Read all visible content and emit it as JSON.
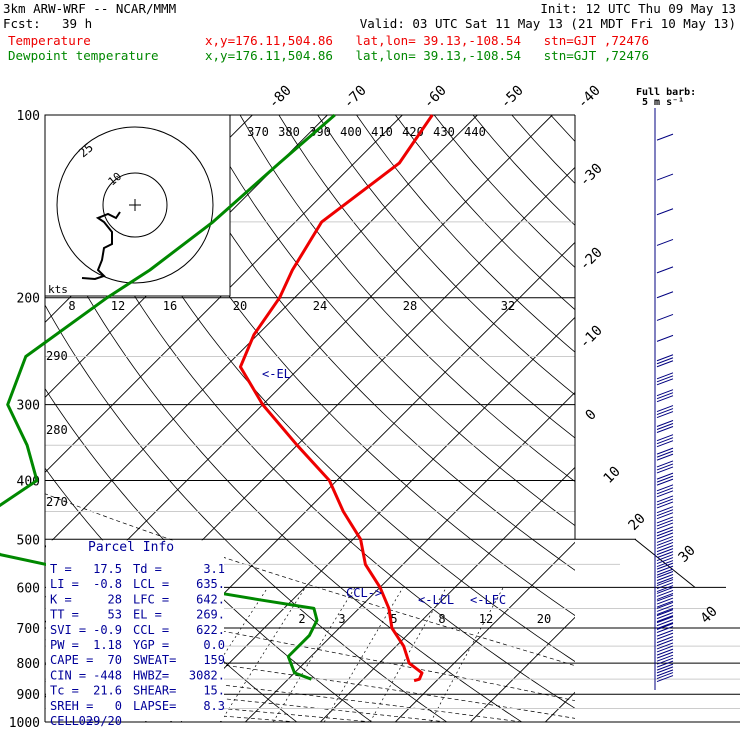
{
  "header": {
    "model": "3km ARW-WRF -- NCAR/MMM",
    "init": "Init: 12 UTC Thu 09 May 13",
    "fcst_label": "Fcst:",
    "fcst_value": "39 h",
    "valid": "Valid: 03 UTC Sat 11 May 13 (21 MDT Fri 10 May 13)",
    "temp_label": "Temperature",
    "temp_loc": "x,y=176.11,504.86   lat,lon= 39.13,-108.54   stn=GJT ,72476",
    "dew_label": "Dewpoint temperature",
    "dew_loc": "x,y=176.11,504.86   lat,lon= 39.13,-108.54   stn=GJT ,72476"
  },
  "colors": {
    "temperature": "#ee0000",
    "dewpoint": "#008800",
    "barbs": "#000080",
    "parcel_text": "#000099"
  },
  "chart_data": {
    "type": "line",
    "title": "Skew-T log-P sounding",
    "y_axis": {
      "label": "",
      "scale": "log-pressure",
      "ticks": [
        "100",
        "200",
        "300",
        "400",
        "500",
        "600",
        "700",
        "800",
        "900",
        "1000"
      ]
    },
    "isotherm_labels": [
      "-80",
      "-70",
      "-60",
      "-50",
      "-40",
      "-30",
      "-20",
      "-10",
      "0",
      "10",
      "20",
      "30",
      "40"
    ],
    "theta_labels": [
      "290",
      "280",
      "270"
    ],
    "theta_e_labels": [
      "370",
      "380",
      "390",
      "400",
      "410",
      "420",
      "430",
      "440"
    ],
    "mixing_ratio_labels": [
      "2",
      "3",
      "5",
      "8",
      "12",
      "20"
    ],
    "mixing_ratio_units": "g/kg",
    "annotations": [
      "<-EL",
      "CCL->",
      "<-LCL",
      "<-LFC"
    ],
    "barb_legend": {
      "title": "Full barb:",
      "value": "5 m s⁻¹"
    },
    "hodograph": {
      "units": "kts",
      "ring_labels": [
        "25",
        "10"
      ],
      "speed_ticks": [
        "8",
        "12",
        "16",
        "20",
        "24",
        "28",
        "32"
      ]
    },
    "series": [
      {
        "name": "Temperature",
        "points": [
          [
            100,
            -56
          ],
          [
            120,
            -54
          ],
          [
            150,
            -56.5
          ],
          [
            180,
            -54
          ],
          [
            200,
            -52
          ],
          [
            230,
            -50.5
          ],
          [
            260,
            -48
          ],
          [
            300,
            -40
          ],
          [
            350,
            -30
          ],
          [
            400,
            -21
          ],
          [
            450,
            -15
          ],
          [
            500,
            -9
          ],
          [
            550,
            -5
          ],
          [
            600,
            0
          ],
          [
            650,
            4
          ],
          [
            700,
            7
          ],
          [
            750,
            11
          ],
          [
            800,
            14
          ],
          [
            830,
            17
          ],
          [
            850,
            17.5
          ],
          [
            855,
            17
          ]
        ]
      },
      {
        "name": "Dewpoint temperature",
        "points": [
          [
            100,
            -69
          ],
          [
            120,
            -70
          ],
          [
            150,
            -71
          ],
          [
            180,
            -73
          ],
          [
            200,
            -75
          ],
          [
            250,
            -78
          ],
          [
            300,
            -74
          ],
          [
            350,
            -66
          ],
          [
            400,
            -60
          ],
          [
            450,
            -62
          ],
          [
            500,
            -60
          ],
          [
            530,
            -55
          ],
          [
            560,
            -44
          ],
          [
            600,
            -26
          ],
          [
            630,
            -14
          ],
          [
            650,
            -6
          ],
          [
            680,
            -4
          ],
          [
            720,
            -3
          ],
          [
            780,
            -3
          ],
          [
            830,
            0
          ],
          [
            850,
            3.1
          ]
        ]
      }
    ],
    "parcel_info": {
      "title": "Parcel Info",
      "rows": [
        [
          "T  =",
          "17.5",
          "Td =",
          "3.1"
        ],
        [
          "LI =",
          "-0.8",
          "LCL =",
          "635."
        ],
        [
          "K  =",
          "28",
          "LFC =",
          "642."
        ],
        [
          "TT =",
          "53",
          "EL =",
          "269."
        ],
        [
          "SVI =",
          "-0.9",
          "CCL =",
          "622."
        ],
        [
          "PW =",
          "1.18",
          "YGP =",
          "0.0"
        ],
        [
          "CAPE =",
          "70",
          "SWEAT=",
          "159"
        ],
        [
          "CIN =",
          "-448",
          "HWBZ=",
          "3082."
        ],
        [
          "Tc =",
          "21.6",
          "SHEAR=",
          "15."
        ],
        [
          "SREH =",
          "0",
          "LAPSE=",
          "8.3"
        ],
        [
          "CELL =",
          "029/20",
          "",
          ""
        ]
      ]
    }
  }
}
